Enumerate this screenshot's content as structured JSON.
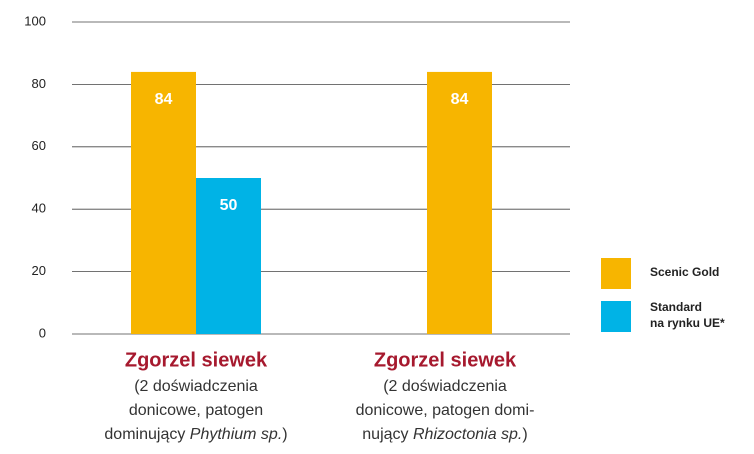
{
  "chart_data": {
    "type": "bar",
    "categories": [
      "Zgorzel siewek",
      "Zgorzel siewek"
    ],
    "category_notes": [
      [
        [
          {
            "text": "(2 doświadczenia"
          }
        ],
        [
          {
            "text": "donicowe, patogen"
          }
        ],
        [
          {
            "text": "dominujący "
          },
          {
            "text": "Phythium sp.",
            "italic": true
          },
          {
            "text": ")"
          }
        ]
      ],
      [
        [
          {
            "text": "(2 doświadczenia"
          }
        ],
        [
          {
            "text": "donicowe, patogen domi-"
          }
        ],
        [
          {
            "text": "nujący "
          },
          {
            "text": "Rhizoctonia sp.",
            "italic": true
          },
          {
            "text": ")"
          }
        ]
      ]
    ],
    "series": [
      {
        "name": "Scenic Gold",
        "color": "#f7b500",
        "values": [
          84,
          84
        ]
      },
      {
        "name": "Standard na rynku UE*",
        "color": "#00b3e6",
        "values": [
          50,
          null
        ]
      }
    ],
    "ylim": [
      0,
      100
    ],
    "yticks": [
      0,
      20,
      40,
      60,
      80,
      100
    ],
    "grid": true,
    "legend": "right"
  }
}
